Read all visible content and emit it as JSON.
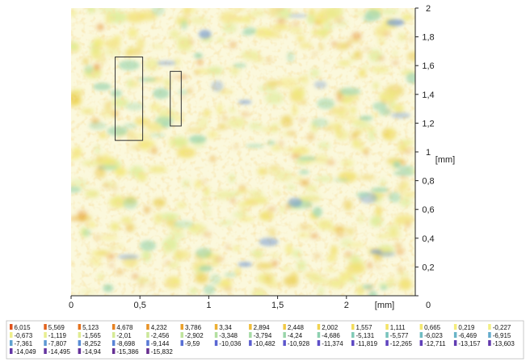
{
  "chart_data": {
    "type": "heatmap",
    "title": "",
    "xlabel": "[mm]",
    "ylabel": "[mm]",
    "xlim": [
      0,
      2.5
    ],
    "ylim": [
      0,
      2
    ],
    "x_ticks": [
      {
        "value": 0,
        "label": "0"
      },
      {
        "value": 0.5,
        "label": "0,5"
      },
      {
        "value": 1,
        "label": "1"
      },
      {
        "value": 1.5,
        "label": "1,5"
      },
      {
        "value": 2,
        "label": "2"
      }
    ],
    "y_ticks": [
      {
        "value": 0,
        "label": "0"
      },
      {
        "value": 0.2,
        "label": "0,2"
      },
      {
        "value": 0.4,
        "label": "0,4"
      },
      {
        "value": 0.6,
        "label": "0,6"
      },
      {
        "value": 0.8,
        "label": "0,8"
      },
      {
        "value": 1,
        "label": "1"
      },
      {
        "value": 1.2,
        "label": "1,2"
      },
      {
        "value": 1.4,
        "label": "1,4"
      },
      {
        "value": 1.6,
        "label": "1,6"
      },
      {
        "value": 1.8,
        "label": "1,8"
      },
      {
        "value": 2,
        "label": "2"
      }
    ],
    "grid": false,
    "legend_placement": "bottom",
    "marked_regions": [
      {
        "x0": 0.32,
        "x1": 0.52,
        "y0": 1.08,
        "y1": 1.66
      },
      {
        "x0": 0.72,
        "x1": 0.8,
        "y0": 1.18,
        "y1": 1.56
      }
    ],
    "legend": [
      {
        "label": "6,015",
        "color": "#e0521c"
      },
      {
        "label": "5,569",
        "color": "#e2621d"
      },
      {
        "label": "5,123",
        "color": "#e4721f"
      },
      {
        "label": "4,678",
        "color": "#e68222"
      },
      {
        "label": "4,232",
        "color": "#e89226"
      },
      {
        "label": "3,786",
        "color": "#eaa12c"
      },
      {
        "label": "3,34",
        "color": "#ecaf33"
      },
      {
        "label": "2,894",
        "color": "#eebd3b"
      },
      {
        "label": "2,448",
        "color": "#f0c945"
      },
      {
        "label": "2,002",
        "color": "#f1d350"
      },
      {
        "label": "1,557",
        "color": "#f2dc5b"
      },
      {
        "label": "1,111",
        "color": "#f3e366"
      },
      {
        "label": "0,665",
        "color": "#f4e871"
      },
      {
        "label": "0,219",
        "color": "#f4ec7b"
      },
      {
        "label": "-0,227",
        "color": "#f2ee84"
      },
      {
        "label": "-0,673",
        "color": "#eeee8b"
      },
      {
        "label": "-1,119",
        "color": "#e8ee90"
      },
      {
        "label": "-1,565",
        "color": "#e0ec93"
      },
      {
        "label": "-2,01",
        "color": "#d6ea96"
      },
      {
        "label": "-2,456",
        "color": "#cbe799"
      },
      {
        "label": "-2,902",
        "color": "#bfe39c"
      },
      {
        "label": "-3,348",
        "color": "#b3dfa0"
      },
      {
        "label": "-3,794",
        "color": "#a6daa5"
      },
      {
        "label": "-4,24",
        "color": "#99d5aa"
      },
      {
        "label": "-4,686",
        "color": "#8dd0b0"
      },
      {
        "label": "-5,131",
        "color": "#82cab6"
      },
      {
        "label": "-5,577",
        "color": "#78c3bc"
      },
      {
        "label": "-6,023",
        "color": "#70bcc2"
      },
      {
        "label": "-6,469",
        "color": "#69b4c7"
      },
      {
        "label": "-6,915",
        "color": "#64abcc"
      },
      {
        "label": "-7,361",
        "color": "#60a2d0"
      },
      {
        "label": "-7,807",
        "color": "#5d98d3"
      },
      {
        "label": "-8,252",
        "color": "#5b8ed5"
      },
      {
        "label": "-8,698",
        "color": "#5a84d6"
      },
      {
        "label": "-9,144",
        "color": "#597ad6"
      },
      {
        "label": "-9,59",
        "color": "#5970d5"
      },
      {
        "label": "-10,036",
        "color": "#5a67d3"
      },
      {
        "label": "-10,482",
        "color": "#5b5ed0"
      },
      {
        "label": "-10,928",
        "color": "#5c56cc"
      },
      {
        "label": "-11,374",
        "color": "#5d4fc8"
      },
      {
        "label": "-11,819",
        "color": "#5e49c3"
      },
      {
        "label": "-12,265",
        "color": "#5f44be"
      },
      {
        "label": "-12,711",
        "color": "#6040b8"
      },
      {
        "label": "-13,157",
        "color": "#613cb2"
      },
      {
        "label": "-13,603",
        "color": "#6239ac"
      },
      {
        "label": "-14,049",
        "color": "#6336a6"
      },
      {
        "label": "-14,495",
        "color": "#6434a0"
      },
      {
        "label": "-14,94",
        "color": "#65329a"
      },
      {
        "label": "-15,386",
        "color": "#663094"
      },
      {
        "label": "-15,832",
        "color": "#672e8e"
      }
    ]
  }
}
